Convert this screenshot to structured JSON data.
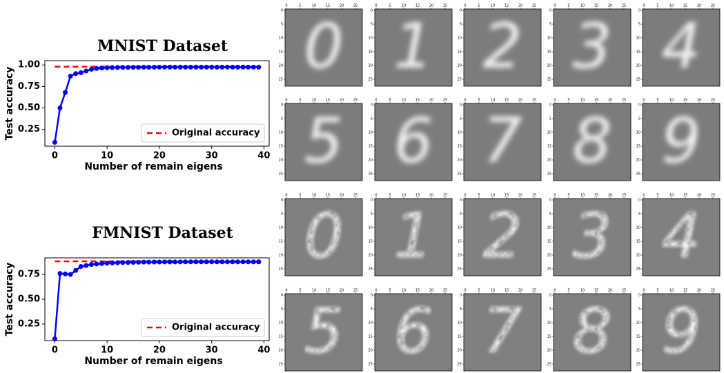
{
  "chart_data": [
    {
      "type": "line",
      "title": "MNIST Dataset",
      "xlabel": "Number of remain eigens",
      "ylabel": "Test accuracy",
      "x": [
        0,
        1,
        2,
        3,
        4,
        5,
        6,
        7,
        8,
        9,
        10,
        11,
        12,
        13,
        14,
        15,
        16,
        17,
        18,
        19,
        20,
        21,
        22,
        23,
        24,
        25,
        26,
        27,
        28,
        29,
        30,
        31,
        32,
        33,
        34,
        35,
        36,
        37,
        38,
        39
      ],
      "values": [
        0.1,
        0.5,
        0.68,
        0.87,
        0.9,
        0.91,
        0.93,
        0.95,
        0.96,
        0.965,
        0.968,
        0.97,
        0.971,
        0.972,
        0.972,
        0.973,
        0.973,
        0.974,
        0.974,
        0.974,
        0.975,
        0.975,
        0.975,
        0.975,
        0.975,
        0.975,
        0.975,
        0.975,
        0.975,
        0.975,
        0.975,
        0.975,
        0.975,
        0.975,
        0.975,
        0.975,
        0.975,
        0.975,
        0.975,
        0.975
      ],
      "color": "#0000ff",
      "reference": {
        "name": "Original accuracy",
        "value": 0.98,
        "color": "#ff0000"
      },
      "xlim": [
        -1.9,
        41
      ],
      "xticks": [
        0,
        10,
        20,
        30,
        40
      ],
      "ylim": [
        0.055,
        1.05
      ],
      "yticks": [
        0.25,
        {
          "value": 0.5,
          "label": "0.50"
        },
        0.75,
        {
          "value": 1,
          "label": "1.00"
        }
      ],
      "legend": "lower right"
    },
    {
      "type": "line",
      "title": "FMNIST Dataset",
      "xlabel": "Number of remain eigens",
      "ylabel": "Test accuracy",
      "x": [
        0,
        1,
        2,
        3,
        4,
        5,
        6,
        7,
        8,
        9,
        10,
        11,
        12,
        13,
        14,
        15,
        16,
        17,
        18,
        19,
        20,
        21,
        22,
        23,
        24,
        25,
        26,
        27,
        28,
        29,
        30,
        31,
        32,
        33,
        34,
        35,
        36,
        37,
        38,
        39
      ],
      "values": [
        0.1,
        0.76,
        0.755,
        0.75,
        0.79,
        0.83,
        0.84,
        0.85,
        0.855,
        0.86,
        0.863,
        0.866,
        0.868,
        0.87,
        0.871,
        0.872,
        0.873,
        0.874,
        0.874,
        0.875,
        0.875,
        0.876,
        0.876,
        0.876,
        0.876,
        0.877,
        0.877,
        0.877,
        0.877,
        0.877,
        0.877,
        0.877,
        0.877,
        0.877,
        0.877,
        0.877,
        0.877,
        0.877,
        0.877,
        0.877
      ],
      "color": "#0000ff",
      "reference": {
        "name": "Original accuracy",
        "value": 0.882,
        "color": "#ff0000"
      },
      "xlim": [
        -1.9,
        41
      ],
      "xticks": [
        0,
        10,
        20,
        30,
        40
      ],
      "ylim": [
        0.083,
        0.917
      ],
      "yticks": [
        0.25,
        {
          "value": 0.5,
          "label": "0.50"
        },
        0.75
      ],
      "legend": "lower right"
    }
  ],
  "digits": [
    "0",
    "1",
    "2",
    "3",
    "4",
    "5",
    "6",
    "7",
    "8",
    "9"
  ],
  "image_ticks": [
    0,
    5,
    10,
    15,
    20,
    25
  ]
}
